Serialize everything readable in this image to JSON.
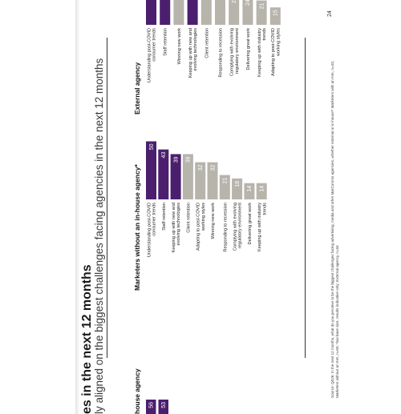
{
  "page": {
    "title": "es in the next 12 months",
    "subtitle": "ly aligned on the biggest challenges facing agencies in the next 12 months",
    "source": "Source: Q026: In the next 12 months, what do you perceive to be the biggest challenges facing advertising, media and other MarComms agencies, whether external or in-house? Marketers with an IHA, n=43; Marketers without an IHA, n=50; *low base size, results indicative only; External agency, n=34",
    "page_number": "24"
  },
  "colors": {
    "highlight": "#4b1f6e",
    "standard": "#b7b4ac",
    "divider": "#333333"
  },
  "chart_data": [
    {
      "type": "bar",
      "title": "house agency",
      "categories": [
        "",
        ""
      ],
      "values": [
        56,
        53
      ],
      "highlight": [
        true,
        true
      ]
    },
    {
      "type": "bar",
      "title": "Marketers without an in-house agency*",
      "categories": [
        "Understanding post-COVID consumer trends",
        "Staff retention",
        "Keeping up with new and evolving technologies",
        "Client retention",
        "Adapting to post-COVID working styles",
        "Winning new work",
        "Responding to recession",
        "Complying with evolving regulatory environment",
        "Delivering great work",
        "Keeping up with industry trends"
      ],
      "values": [
        50,
        43,
        39,
        39,
        32,
        32,
        21,
        18,
        14,
        14
      ],
      "highlight": [
        true,
        true,
        true,
        false,
        false,
        false,
        false,
        false,
        false,
        false
      ]
    },
    {
      "type": "bar",
      "title": "External agency",
      "categories": [
        "Understanding post-COVID consumer trends",
        "Staff retention",
        "Winning new work",
        "Keeping up with new and evolving technologies",
        "Client retention",
        "Responding to recession",
        "Complying with evolving regulatory environment",
        "Delivering great work",
        "Keeping up with industry trends",
        "Adapting to post-COVID working styles"
      ],
      "values": [
        47,
        38,
        38,
        29,
        29,
        29,
        26,
        24,
        21,
        15
      ],
      "highlight": [
        true,
        true,
        false,
        true,
        false,
        false,
        false,
        false,
        false,
        false
      ]
    }
  ]
}
